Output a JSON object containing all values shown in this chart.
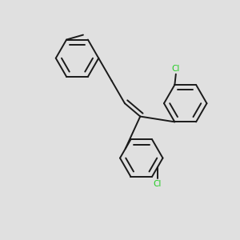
{
  "background_color": "#e0e0e0",
  "line_color": "#1a1a1a",
  "cl_color": "#22cc22",
  "line_width": 1.4,
  "figsize": [
    3.0,
    3.0
  ],
  "dpi": 100,
  "xlim": [
    0,
    10
  ],
  "ylim": [
    0,
    10
  ]
}
